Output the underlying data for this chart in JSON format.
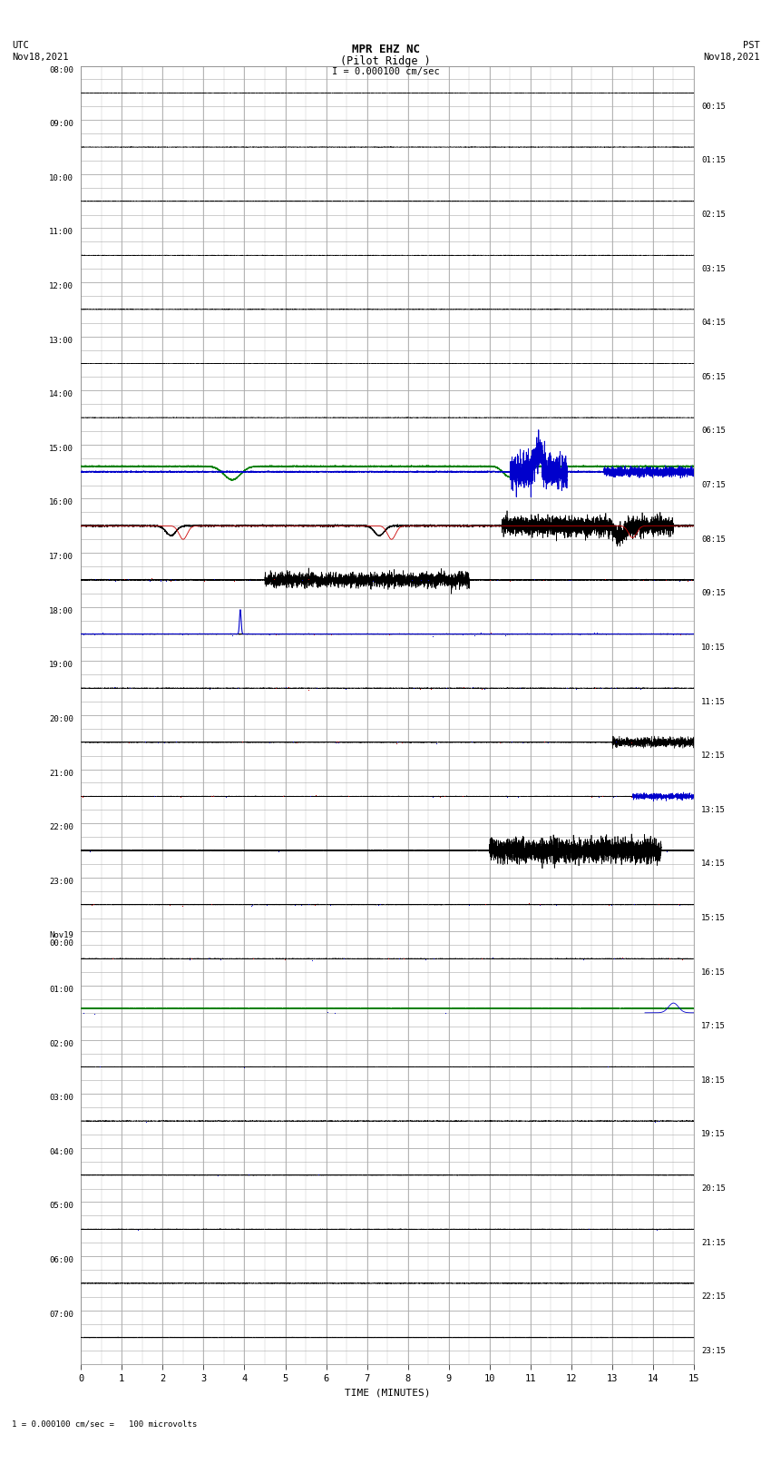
{
  "title_line1": "MPR EHZ NC",
  "title_line2": "(Pilot Ridge )",
  "title_scale": "I = 0.000100 cm/sec",
  "left_header_line1": "UTC",
  "left_header_line2": "Nov18,2021",
  "right_header_line1": "PST",
  "right_header_line2": "Nov18,2021",
  "bottom_label": "TIME (MINUTES)",
  "bottom_note": "1 = 0.000100 cm/sec =   100 microvolts",
  "utc_labels_major": [
    "08:00",
    "09:00",
    "10:00",
    "11:00",
    "12:00",
    "13:00",
    "14:00",
    "15:00",
    "16:00",
    "17:00",
    "18:00",
    "19:00",
    "20:00",
    "21:00",
    "22:00",
    "23:00",
    "Nov19\n00:00",
    "01:00",
    "02:00",
    "03:00",
    "04:00",
    "05:00",
    "06:00",
    "07:00"
  ],
  "pst_labels_major": [
    "00:15",
    "01:15",
    "02:15",
    "03:15",
    "04:15",
    "05:15",
    "06:15",
    "07:15",
    "08:15",
    "09:15",
    "10:15",
    "11:15",
    "12:15",
    "13:15",
    "14:15",
    "15:15",
    "16:15",
    "17:15",
    "18:15",
    "19:15",
    "20:15",
    "21:15",
    "22:15",
    "23:15"
  ],
  "num_rows": 24,
  "x_ticks": [
    0,
    1,
    2,
    3,
    4,
    5,
    6,
    7,
    8,
    9,
    10,
    11,
    12,
    13,
    14,
    15
  ],
  "bg_color": "#ffffff",
  "grid_color": "#aaaaaa",
  "trace_black": "#000000",
  "trace_green": "#008000",
  "trace_blue": "#0000cc",
  "trace_red": "#cc0000"
}
